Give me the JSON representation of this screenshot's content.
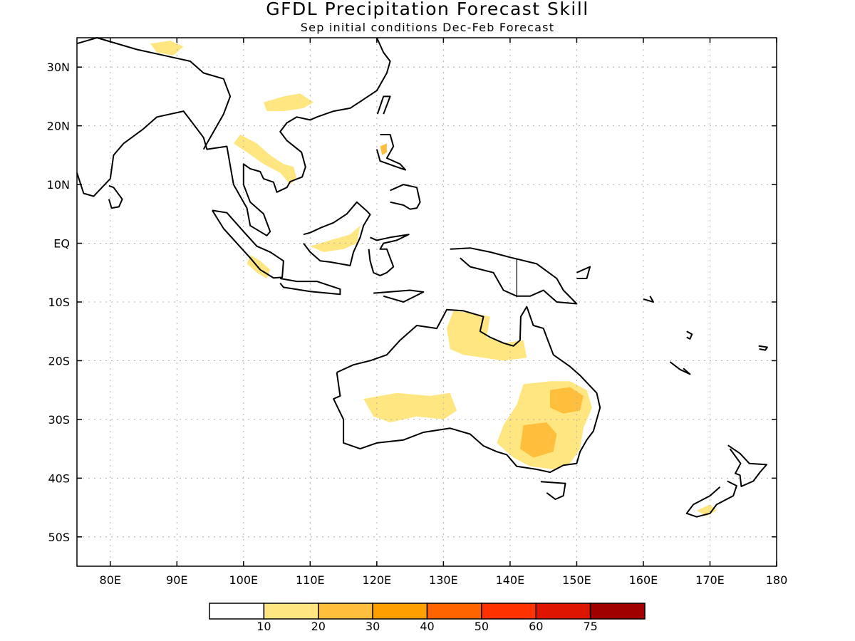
{
  "title": "GFDL Precipitation Forecast Skill",
  "subtitle": "Sep initial conditions  Dec-Feb Forecast",
  "map": {
    "lon_range": [
      75,
      180
    ],
    "lat_range": [
      -55,
      35
    ],
    "lat_ticks": [
      {
        "lat": 30,
        "label": "30N"
      },
      {
        "lat": 20,
        "label": "20N"
      },
      {
        "lat": 10,
        "label": "10N"
      },
      {
        "lat": 0,
        "label": "EQ"
      },
      {
        "lat": -10,
        "label": "10S"
      },
      {
        "lat": -20,
        "label": "20S"
      },
      {
        "lat": -30,
        "label": "30S"
      },
      {
        "lat": -40,
        "label": "40S"
      },
      {
        "lat": -50,
        "label": "50S"
      }
    ],
    "lon_ticks": [
      {
        "lon": 80,
        "label": "80E"
      },
      {
        "lon": 90,
        "label": "90E"
      },
      {
        "lon": 100,
        "label": "100E"
      },
      {
        "lon": 110,
        "label": "110E"
      },
      {
        "lon": 120,
        "label": "120E"
      },
      {
        "lon": 130,
        "label": "130E"
      },
      {
        "lon": 140,
        "label": "140E"
      },
      {
        "lon": 150,
        "label": "150E"
      },
      {
        "lon": 160,
        "label": "160E"
      },
      {
        "lon": 170,
        "label": "170E"
      },
      {
        "lon": 180,
        "label": "180"
      }
    ],
    "grid": true
  },
  "colorbar": {
    "colors": [
      "#ffffff",
      "#ffe680",
      "#ffbe3c",
      "#ffa000",
      "#ff6400",
      "#ff3200",
      "#dc1400",
      "#a00000"
    ],
    "labels": [
      "10",
      "20",
      "30",
      "40",
      "50",
      "60",
      "75"
    ]
  },
  "skill_regions": [
    {
      "region": "Queensland interior",
      "level": 1
    },
    {
      "region": "Eastern Australia",
      "level": 1
    },
    {
      "region": "Eastern Australia core",
      "level": 2
    },
    {
      "region": "Southeastern Australia",
      "level": 2
    },
    {
      "region": "Western Australia interior",
      "level": 1
    },
    {
      "region": "Borneo",
      "level": 1
    },
    {
      "region": "Indochina",
      "level": 1
    },
    {
      "region": "South China",
      "level": 1
    },
    {
      "region": "Tibet",
      "level": 1
    },
    {
      "region": "Sumatra",
      "level": 1
    },
    {
      "region": "Luzon",
      "level": 2
    },
    {
      "region": "New Zealand South Island",
      "level": 1
    }
  ]
}
